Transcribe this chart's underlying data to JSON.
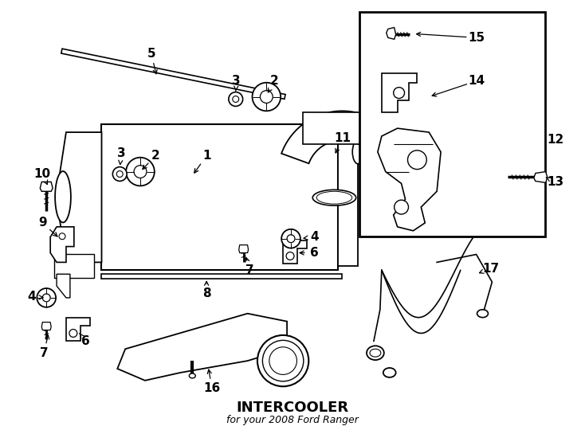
{
  "title": "INTERCOOLER",
  "subtitle": "for your 2008 Ford Ranger",
  "bg": "#ffffff",
  "lc": "#000000",
  "fig_w": 7.34,
  "fig_h": 5.4,
  "dpi": 100
}
